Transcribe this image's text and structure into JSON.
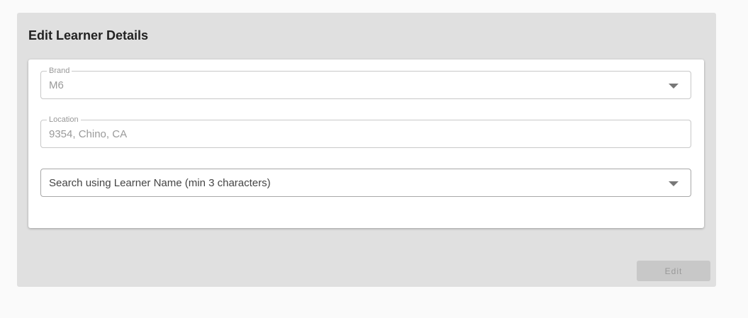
{
  "form": {
    "title": "Edit Learner Details",
    "brand": {
      "label": "Brand",
      "value": "M6",
      "icon": "caret-down-icon"
    },
    "location": {
      "label": "Location",
      "value": "9354, Chino, CA"
    },
    "learner_search": {
      "placeholder": "Search using Learner Name (min 3 characters)",
      "icon": "caret-down-icon"
    },
    "edit_label": "Edit"
  }
}
